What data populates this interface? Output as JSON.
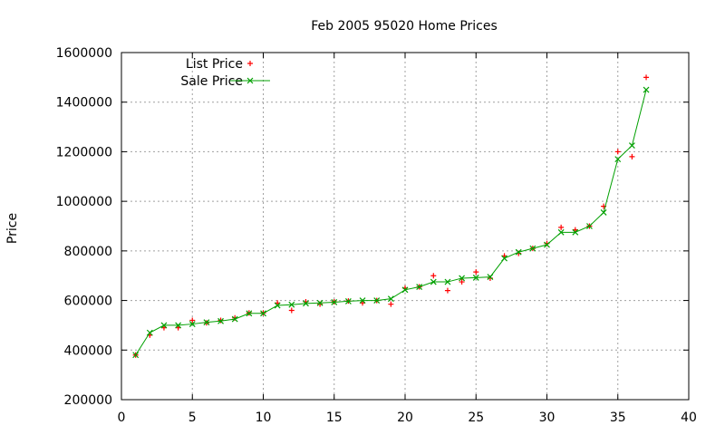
{
  "chart_data": {
    "type": "scatter",
    "title": "Feb 2005 95020 Home Prices",
    "xlabel": "",
    "ylabel": "Price",
    "xlim": [
      0,
      40
    ],
    "ylim": [
      200000,
      1600000
    ],
    "xticks": [
      0,
      5,
      10,
      15,
      20,
      25,
      30,
      35,
      40
    ],
    "yticks": [
      200000,
      400000,
      600000,
      800000,
      1000000,
      1200000,
      1400000,
      1600000
    ],
    "grid": true,
    "legend_position": "top-left",
    "x": [
      1,
      2,
      3,
      4,
      5,
      6,
      7,
      8,
      9,
      10,
      11,
      12,
      13,
      14,
      15,
      16,
      17,
      18,
      19,
      20,
      21,
      22,
      23,
      24,
      25,
      26,
      27,
      28,
      29,
      30,
      31,
      32,
      33,
      34,
      35,
      36,
      37
    ],
    "series": [
      {
        "name": "List Price",
        "style": "points",
        "marker": "plus",
        "color": "#ff0000",
        "values": [
          380000,
          460000,
          490000,
          490000,
          520000,
          510000,
          520000,
          530000,
          550000,
          550000,
          590000,
          560000,
          595000,
          585000,
          595000,
          598000,
          590000,
          600000,
          585000,
          650000,
          655000,
          700000,
          640000,
          675000,
          715000,
          690000,
          780000,
          790000,
          810000,
          830000,
          895000,
          885000,
          900000,
          980000,
          1200000,
          1180000,
          1500000
        ]
      },
      {
        "name": "Sale Price",
        "style": "linespoints",
        "marker": "cross",
        "color": "#00a000",
        "values": [
          380000,
          470000,
          500000,
          500000,
          505000,
          512000,
          517000,
          525000,
          548000,
          548000,
          580000,
          583000,
          588000,
          590000,
          593000,
          597000,
          600000,
          600000,
          607000,
          643000,
          655000,
          675000,
          675000,
          690000,
          692000,
          695000,
          770000,
          795000,
          810000,
          825000,
          875000,
          875000,
          900000,
          955000,
          1170000,
          1225000,
          1450000
        ]
      }
    ]
  }
}
